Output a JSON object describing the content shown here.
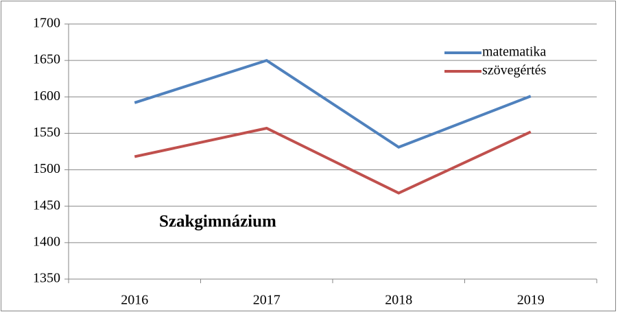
{
  "chart_data": {
    "type": "line",
    "annotation": "Szakgimnázium",
    "categories": [
      "2016",
      "2017",
      "2018",
      "2019"
    ],
    "series": [
      {
        "name": "matematika",
        "color": "#4f81bd",
        "values": [
          1592,
          1650,
          1531,
          1601
        ]
      },
      {
        "name": "szövegértés",
        "color": "#c0504d",
        "values": [
          1518,
          1557,
          1468,
          1552
        ]
      }
    ],
    "ylim": [
      1350,
      1700
    ],
    "yticks": [
      1350,
      1400,
      1450,
      1500,
      1550,
      1600,
      1650,
      1700
    ],
    "grid": true,
    "legend": "upper right"
  }
}
